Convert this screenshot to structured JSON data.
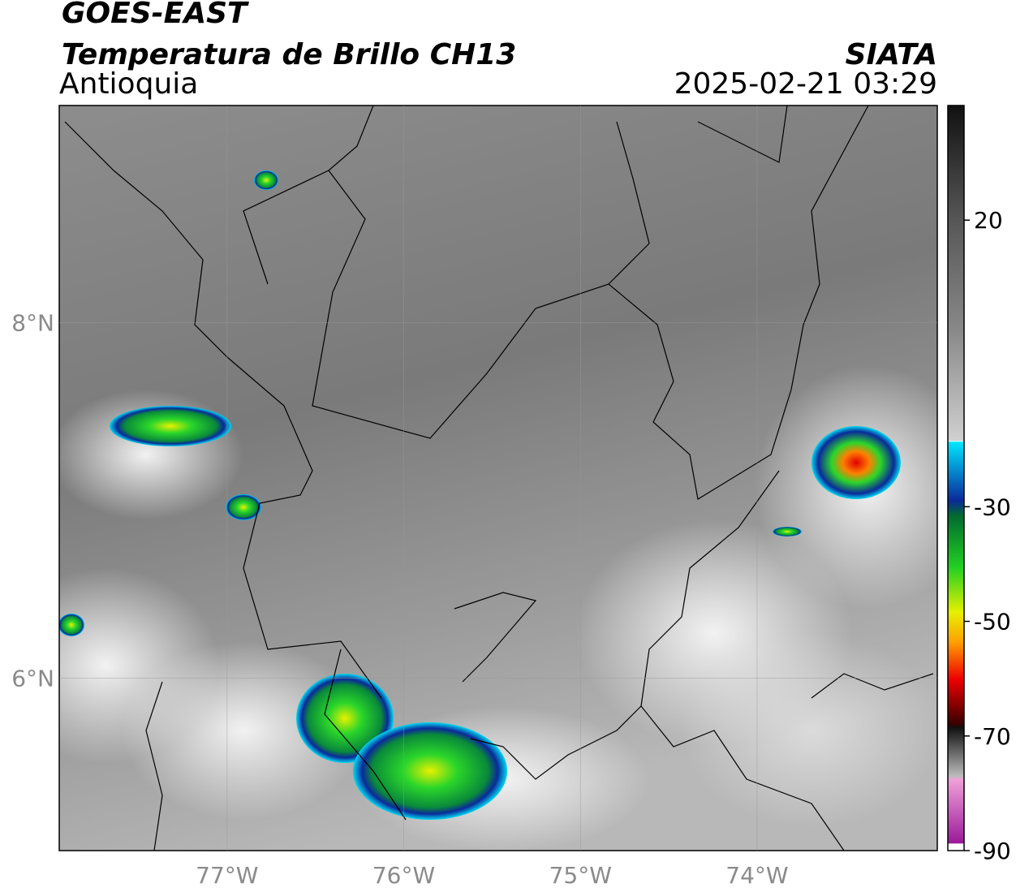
{
  "header": {
    "title": "GOES-EAST",
    "subtitle": "Temperatura de Brillo CH13",
    "region": "Antioquia",
    "source": "SIATA",
    "timestamp": "2025-02-21 03:29"
  },
  "map": {
    "lonlim": [
      -77.95,
      -72.98
    ],
    "latlim": [
      5.03,
      9.22
    ],
    "lonticks": [
      {
        "value": -77,
        "label": "77°W"
      },
      {
        "value": -76,
        "label": "76°W"
      },
      {
        "value": -75,
        "label": "75°W"
      },
      {
        "value": -74,
        "label": "74°W"
      }
    ],
    "latticks": [
      {
        "value": 8,
        "label": "8°N"
      },
      {
        "value": 6,
        "label": "6°N"
      }
    ],
    "grid": true
  },
  "colorbar": {
    "range": [
      -90,
      40
    ],
    "ticks": [
      20,
      -30,
      -50,
      -70,
      -90
    ]
  }
}
